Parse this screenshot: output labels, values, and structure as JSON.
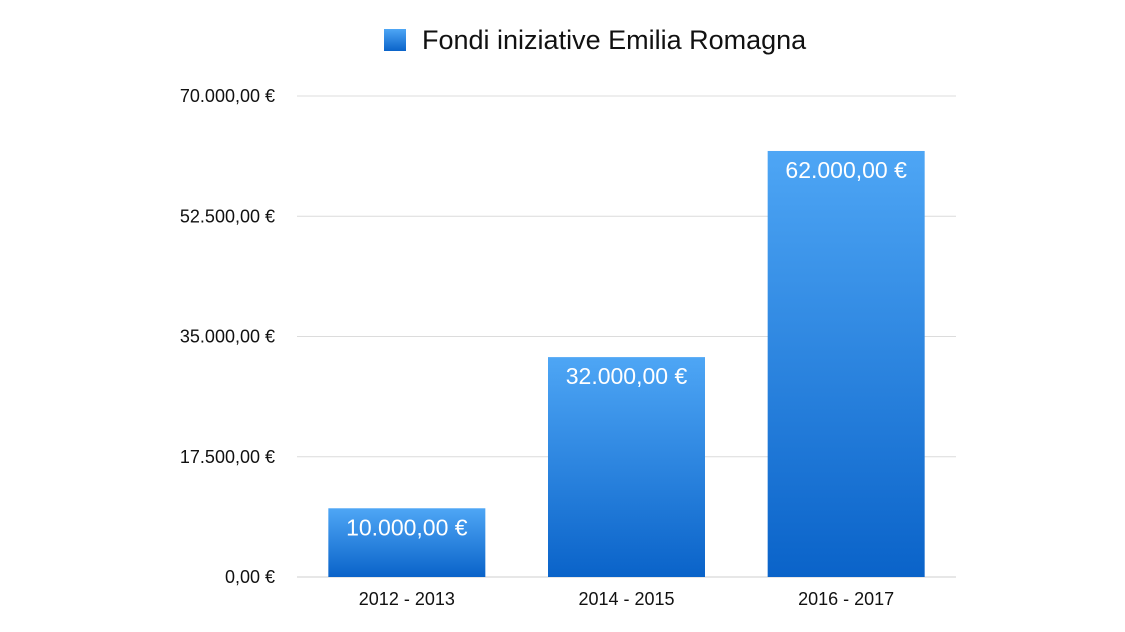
{
  "chart_data": {
    "type": "bar",
    "categories": [
      "2012 - 2013",
      "2014 - 2015",
      "2016 - 2017"
    ],
    "series": [
      {
        "name": "Fondi iniziative Emilia Romagna",
        "values": [
          10000,
          32000,
          62000
        ],
        "data_labels": [
          "10.000,00 €",
          "32.000,00 €",
          "62.000,00 €"
        ]
      }
    ],
    "ylim": [
      0,
      70000
    ],
    "yticks": [
      0,
      17500,
      35000,
      52500,
      70000
    ],
    "ytick_labels": [
      "0,00 €",
      "17.500,00 €",
      "35.000,00 €",
      "52.500,00 €",
      "70.000,00 €"
    ],
    "xlabel": "",
    "ylabel": "",
    "grid": "horizontal",
    "legend_position": "top-center"
  },
  "colors": {
    "bar_top": "#4ea6f5",
    "bar_bottom": "#0a63c9",
    "grid": "#dcdcdc",
    "axis": "#cfcfcf"
  }
}
